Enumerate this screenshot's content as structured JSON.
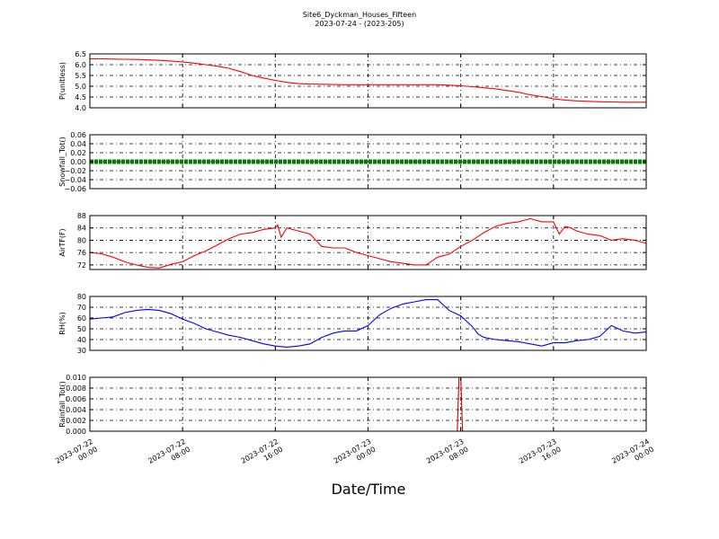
{
  "figure": {
    "title": "Site6_Dyckman_Houses_Fifteen",
    "subtitle": "2023-07-24 - (2023-205)",
    "xlabel": "Date/Time"
  },
  "chart_data": [
    {
      "type": "line",
      "ylabel": "P(unitless)",
      "ylim": [
        4.0,
        6.5
      ],
      "yticks": [
        "4.0",
        "4.5",
        "5.0",
        "5.5",
        "6.0",
        "6.5"
      ],
      "yticks_values": [
        4.0,
        4.5,
        5.0,
        5.5,
        6.0,
        6.5
      ],
      "xlim": [
        0,
        48
      ],
      "xticks": [
        0,
        8,
        16,
        24,
        32,
        40,
        48
      ],
      "grid": true,
      "series": [
        {
          "color": "#ff0000",
          "x": [
            0,
            1,
            2,
            3,
            4,
            5,
            6,
            7,
            8,
            9,
            10,
            11,
            12,
            13,
            14,
            15,
            16,
            17,
            18,
            19,
            20,
            21,
            22,
            23,
            24,
            25,
            26,
            27,
            28,
            29,
            30,
            31,
            32,
            33,
            34,
            35,
            36,
            37,
            38,
            39,
            40,
            41,
            42,
            43,
            44,
            45,
            46,
            47,
            48
          ],
          "y": [
            6.27,
            6.27,
            6.26,
            6.25,
            6.24,
            6.22,
            6.2,
            6.17,
            6.13,
            6.07,
            6.0,
            5.93,
            5.83,
            5.68,
            5.5,
            5.38,
            5.27,
            5.18,
            5.12,
            5.1,
            5.09,
            5.08,
            5.07,
            5.07,
            5.07,
            5.07,
            5.07,
            5.07,
            5.07,
            5.07,
            5.07,
            5.05,
            5.02,
            4.98,
            4.93,
            4.88,
            4.8,
            4.72,
            4.6,
            4.52,
            4.42,
            4.36,
            4.32,
            4.3,
            4.28,
            4.27,
            4.26,
            4.26,
            4.26
          ]
        }
      ]
    },
    {
      "type": "line",
      "ylabel": "Snowfall_Tot()",
      "ylim": [
        -0.06,
        0.06
      ],
      "yticks": [
        "−0.06",
        "−0.04",
        "−0.02",
        "0.00",
        "0.02",
        "0.04",
        "0.06"
      ],
      "yticks_values": [
        -0.06,
        -0.04,
        -0.02,
        0.0,
        0.02,
        0.04,
        0.06
      ],
      "xlim": [
        0,
        48
      ],
      "xticks": [
        0,
        8,
        16,
        24,
        32,
        40,
        48
      ],
      "grid": true,
      "series": [
        {
          "color": "#008000",
          "marker": "circle",
          "x": [
            0,
            48
          ],
          "y": [
            0,
            0
          ]
        }
      ]
    },
    {
      "type": "line",
      "ylabel": "AirTF(F)",
      "ylim": [
        70.5,
        88
      ],
      "yticks": [
        "72",
        "76",
        "80",
        "84",
        "88"
      ],
      "yticks_values": [
        72,
        76,
        80,
        84,
        88
      ],
      "xlim": [
        0,
        48
      ],
      "xticks": [
        0,
        8,
        16,
        24,
        32,
        40,
        48
      ],
      "grid": true,
      "series": [
        {
          "color": "#ff0000",
          "x": [
            0,
            1,
            2,
            3,
            4,
            5,
            6,
            7,
            8,
            9,
            10,
            11,
            12,
            13,
            14,
            15,
            16,
            16.2,
            16.5,
            17,
            18,
            19,
            20,
            21,
            22,
            23,
            24,
            25,
            26,
            27,
            28,
            29,
            30,
            31,
            32,
            33,
            34,
            35,
            36,
            37,
            38,
            39,
            40,
            40.5,
            41,
            41.5,
            42,
            43,
            44,
            45,
            46,
            47,
            48
          ],
          "y": [
            76,
            75.6,
            74.5,
            73,
            72,
            71.2,
            71.0,
            72.2,
            73.0,
            75.0,
            76.5,
            78.5,
            80.5,
            82.0,
            82.5,
            83.5,
            84.0,
            85.0,
            81.0,
            84.0,
            83.0,
            82.0,
            78.0,
            77.5,
            77.5,
            76.0,
            75.0,
            74.0,
            73.0,
            72.5,
            72.0,
            72.0,
            74.5,
            75.5,
            78.0,
            80.0,
            82.5,
            84.5,
            85.5,
            86.0,
            87.0,
            86.0,
            86.0,
            82.0,
            84.5,
            84.0,
            83.0,
            82.0,
            81.5,
            80.0,
            80.5,
            80.0,
            79.0
          ]
        }
      ]
    },
    {
      "type": "line",
      "ylabel": "RH(%)",
      "ylim": [
        30,
        80
      ],
      "yticks": [
        "30",
        "40",
        "50",
        "60",
        "70",
        "80"
      ],
      "yticks_values": [
        30,
        40,
        50,
        60,
        70,
        80
      ],
      "xlim": [
        0,
        48
      ],
      "xticks": [
        0,
        8,
        16,
        24,
        32,
        40,
        48
      ],
      "grid": true,
      "series": [
        {
          "color": "#0000ff",
          "x": [
            0,
            1,
            2,
            3,
            4,
            5,
            6,
            7,
            8,
            9,
            10,
            11,
            12,
            13,
            14,
            15,
            16,
            17,
            18,
            19,
            20,
            21,
            22,
            23,
            24,
            25,
            26,
            27,
            28,
            29,
            30,
            31,
            32,
            33,
            33.5,
            34,
            35,
            36,
            37,
            38,
            39,
            40,
            41,
            42,
            43,
            44,
            45,
            46,
            47,
            48
          ],
          "y": [
            59,
            60,
            61,
            65,
            67,
            68,
            67,
            64,
            59,
            55,
            50,
            47,
            44,
            42,
            39,
            36,
            34,
            33,
            34,
            36,
            42,
            46,
            48,
            48,
            53,
            63,
            69,
            73,
            75,
            77,
            77,
            67,
            62,
            52,
            45,
            42,
            40,
            39,
            38,
            36,
            34,
            37,
            37,
            39,
            40,
            43,
            53,
            48,
            46,
            47
          ]
        }
      ]
    },
    {
      "type": "line",
      "ylabel": "Rainfall_Tot()",
      "ylim": [
        0.0,
        0.01
      ],
      "yticks": [
        "0.000",
        "0.002",
        "0.004",
        "0.006",
        "0.008",
        "0.010"
      ],
      "yticks_values": [
        0.0,
        0.002,
        0.004,
        0.006,
        0.008,
        0.01
      ],
      "xlim": [
        0,
        48
      ],
      "xticks": [
        0,
        8,
        16,
        24,
        32,
        40,
        48
      ],
      "grid": true,
      "series": [
        {
          "color": "#cc0000",
          "x": [
            0,
            31.7,
            31.85,
            32.0,
            32.15,
            48
          ],
          "y": [
            0,
            0,
            0.01,
            0.01,
            0,
            0
          ]
        }
      ]
    }
  ],
  "xtick_labels": [
    [
      "2023-07-22",
      "00:00"
    ],
    [
      "2023-07-22",
      "08:00"
    ],
    [
      "2023-07-22",
      "16:00"
    ],
    [
      "2023-07-23",
      "00:00"
    ],
    [
      "2023-07-23",
      "08:00"
    ],
    [
      "2023-07-23",
      "16:00"
    ],
    [
      "2023-07-24",
      "00:00"
    ]
  ]
}
